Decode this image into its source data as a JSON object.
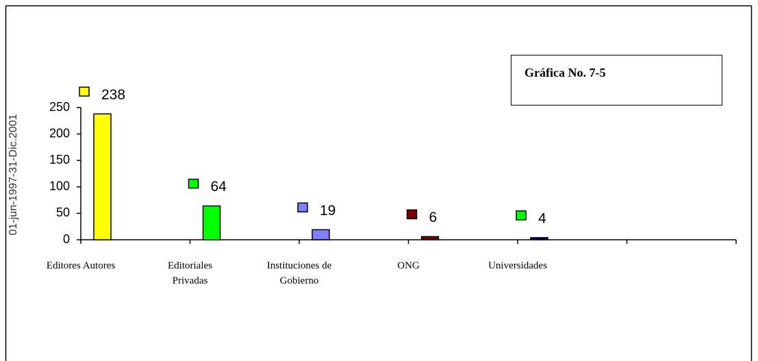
{
  "chart_data": {
    "type": "bar",
    "title": "Gráfica No. 7-5",
    "y_axis_label": "01-jun-1997-31-Dic.2001",
    "categories": [
      "Editores Autores",
      "Editoriales\nPrivadas",
      "Instituciones de\nGobierno",
      "ONG",
      "Universidades",
      null
    ],
    "values": [
      238,
      64,
      19,
      6,
      4,
      null
    ],
    "colors": [
      "#ffff00",
      "#00ff00",
      "#8080ff",
      "#800000",
      "#000080",
      null
    ],
    "label_marker_colors": [
      "#ffff00",
      "#00ff00",
      "#8080ff",
      "#800000",
      "#00ff00",
      null
    ],
    "ylim": [
      0,
      250
    ],
    "yticks": [
      0,
      50,
      100,
      150,
      200,
      250
    ]
  }
}
